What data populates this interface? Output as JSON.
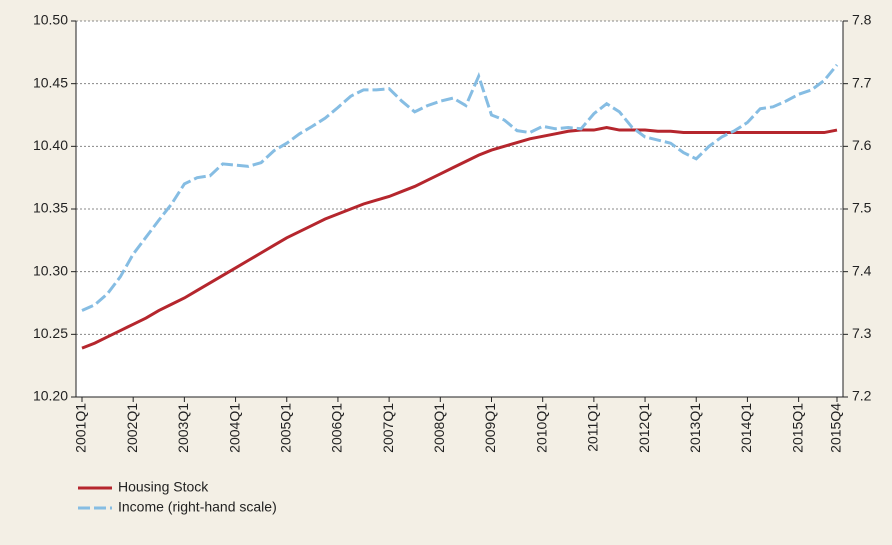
{
  "chart_data": {
    "type": "line",
    "categories": [
      "2001Q1",
      null,
      null,
      null,
      "2002Q1",
      null,
      null,
      null,
      "2003Q1",
      null,
      null,
      null,
      "2004Q1",
      null,
      null,
      null,
      "2005Q1",
      null,
      null,
      null,
      "2006Q1",
      null,
      null,
      null,
      "2007Q1",
      null,
      null,
      null,
      "2008Q1",
      null,
      null,
      null,
      "2009Q1",
      null,
      null,
      null,
      "2010Q1",
      null,
      null,
      null,
      "2011Q1",
      null,
      null,
      null,
      "2012Q1",
      null,
      null,
      null,
      "2013Q1",
      null,
      null,
      null,
      "2014Q1",
      null,
      null,
      null,
      "2015Q1",
      null,
      null,
      "2015Q4"
    ],
    "series": [
      {
        "name": "Housing Stock",
        "color": "#b5262d",
        "dashed": false,
        "values": [
          10.239,
          10.243,
          10.248,
          10.253,
          10.258,
          10.263,
          10.269,
          10.274,
          10.279,
          10.285,
          10.291,
          10.297,
          10.303,
          10.309,
          10.315,
          10.321,
          10.327,
          10.332,
          10.337,
          10.342,
          10.346,
          10.35,
          10.354,
          10.357,
          10.36,
          10.364,
          10.368,
          10.373,
          10.378,
          10.383,
          10.388,
          10.393,
          10.397,
          10.4,
          10.403,
          10.406,
          10.408,
          10.41,
          10.412,
          10.413,
          10.413,
          10.415,
          10.413,
          10.413,
          10.413,
          10.412,
          10.412,
          10.411,
          10.411,
          10.411,
          10.411,
          10.411,
          10.411,
          10.411,
          10.411,
          10.411,
          10.411,
          10.411,
          10.411,
          10.413
        ]
      },
      {
        "name": "Income (right-hand scale)",
        "color": "#86bde3",
        "dashed": true,
        "axis": "y2",
        "values": [
          7.338,
          7.347,
          7.365,
          7.392,
          7.428,
          7.455,
          7.482,
          7.508,
          7.54,
          7.55,
          7.553,
          7.572,
          7.57,
          7.568,
          7.574,
          7.593,
          7.605,
          7.62,
          7.632,
          7.645,
          7.662,
          7.68,
          7.69,
          7.69,
          7.692,
          7.672,
          7.655,
          7.665,
          7.672,
          7.677,
          7.665,
          7.712,
          7.65,
          7.642,
          7.625,
          7.622,
          7.632,
          7.628,
          7.63,
          7.628,
          7.652,
          7.668,
          7.655,
          7.63,
          7.615,
          7.61,
          7.605,
          7.59,
          7.58,
          7.6,
          7.615,
          7.625,
          7.638,
          7.66,
          7.663,
          7.672,
          7.683,
          7.69,
          7.705,
          7.73
        ]
      }
    ],
    "ylim": [
      10.2,
      10.5
    ],
    "yticks": [
      {
        "value": 10.2,
        "label": "10.20"
      },
      10.25,
      {
        "value": 10.3,
        "label": "10.30"
      },
      10.35,
      {
        "value": 10.4,
        "label": "10.40"
      },
      10.45,
      {
        "value": 10.5,
        "label": "10.50"
      }
    ],
    "y2lim": [
      7.2,
      7.8
    ],
    "y2ticks": [
      7.2,
      7.3,
      7.4,
      7.5,
      7.6,
      7.7,
      7.8
    ],
    "grid": true
  }
}
